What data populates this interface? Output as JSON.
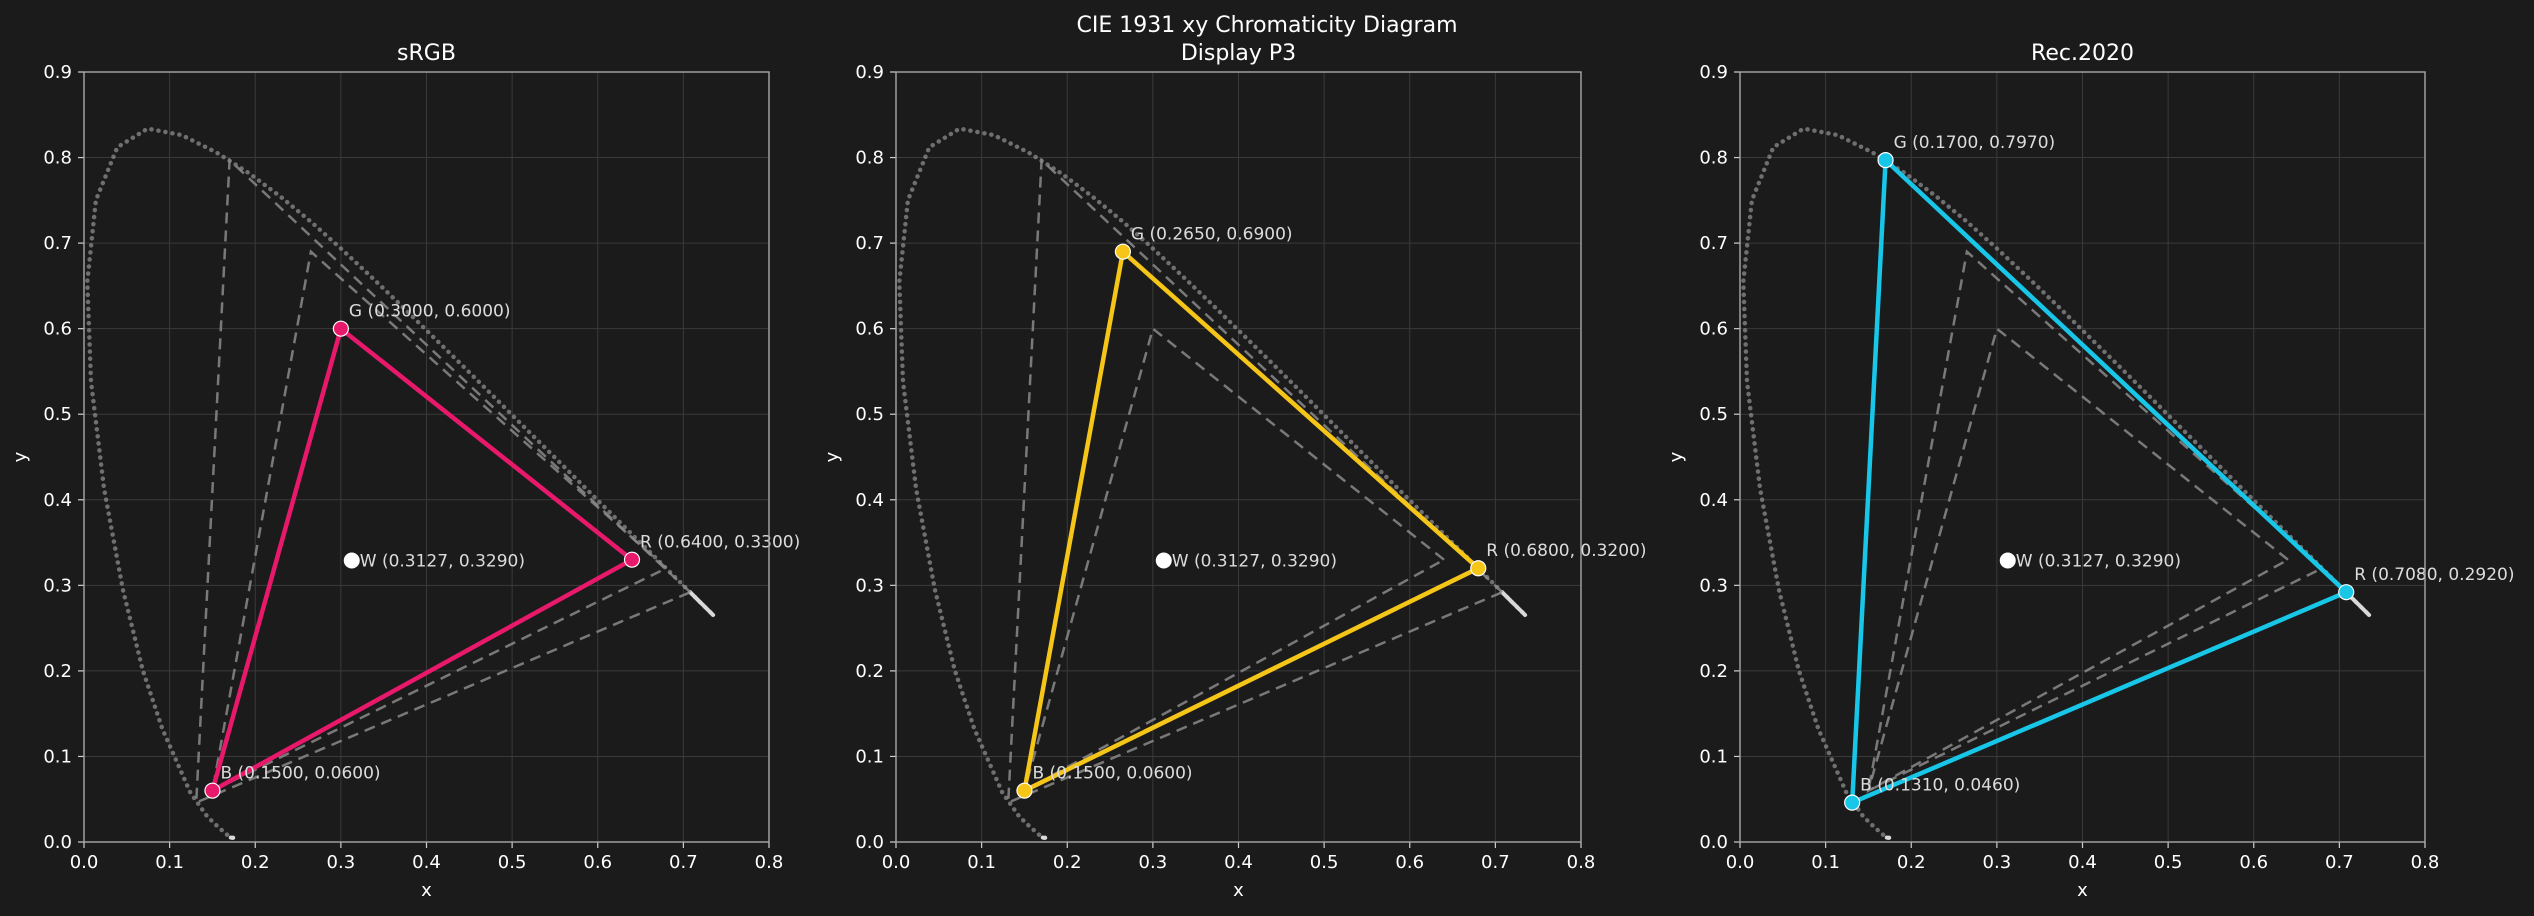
{
  "figure": {
    "suptitle_line1": "CIE 1931 xy Chromaticity Diagram",
    "background": "#1b1b1b",
    "grid_color": "#3a3a3a",
    "locus_color": "#8c8c8c",
    "reference_gamut_color": "#8a8a8a",
    "whitepoint_color": "#ffffff"
  },
  "chart_data": [
    {
      "type": "line",
      "title": "sRGB",
      "xlabel": "x",
      "ylabel": "y",
      "xlim": [
        0,
        0.8
      ],
      "ylim": [
        0,
        0.9
      ],
      "xticks": [
        "0.0",
        "0.1",
        "0.2",
        "0.3",
        "0.4",
        "0.5",
        "0.6",
        "0.7",
        "0.8"
      ],
      "yticks": [
        "0.0",
        "0.1",
        "0.2",
        "0.3",
        "0.4",
        "0.5",
        "0.6",
        "0.7",
        "0.8",
        "0.9"
      ],
      "grid": true,
      "color": "#e8196b",
      "primaries": [
        {
          "name": "R",
          "x": 0.64,
          "y": 0.33,
          "label": "R (0.6400, 0.3300)"
        },
        {
          "name": "G",
          "x": 0.3,
          "y": 0.6,
          "label": "G (0.3000, 0.6000)"
        },
        {
          "name": "B",
          "x": 0.15,
          "y": 0.06,
          "label": "B (0.1500, 0.0600)"
        }
      ],
      "whitepoint": {
        "x": 0.3127,
        "y": 0.329,
        "label": "W (0.3127, 0.3290)"
      }
    },
    {
      "type": "line",
      "title": "Display P3",
      "xlabel": "x",
      "ylabel": "y",
      "xlim": [
        0,
        0.8
      ],
      "ylim": [
        0,
        0.9
      ],
      "xticks": [
        "0.0",
        "0.1",
        "0.2",
        "0.3",
        "0.4",
        "0.5",
        "0.6",
        "0.7",
        "0.8"
      ],
      "yticks": [
        "0.0",
        "0.1",
        "0.2",
        "0.3",
        "0.4",
        "0.5",
        "0.6",
        "0.7",
        "0.8",
        "0.9"
      ],
      "grid": true,
      "color": "#f5c518",
      "primaries": [
        {
          "name": "R",
          "x": 0.68,
          "y": 0.32,
          "label": "R (0.6800, 0.3200)"
        },
        {
          "name": "G",
          "x": 0.265,
          "y": 0.69,
          "label": "G (0.2650, 0.6900)"
        },
        {
          "name": "B",
          "x": 0.15,
          "y": 0.06,
          "label": "B (0.1500, 0.0600)"
        }
      ],
      "whitepoint": {
        "x": 0.3127,
        "y": 0.329,
        "label": "W (0.3127, 0.3290)"
      }
    },
    {
      "type": "line",
      "title": "Rec.2020",
      "xlabel": "x",
      "ylabel": "y",
      "xlim": [
        0,
        0.8
      ],
      "ylim": [
        0,
        0.9
      ],
      "xticks": [
        "0.0",
        "0.1",
        "0.2",
        "0.3",
        "0.4",
        "0.5",
        "0.6",
        "0.7",
        "0.8"
      ],
      "yticks": [
        "0.0",
        "0.1",
        "0.2",
        "0.3",
        "0.4",
        "0.5",
        "0.6",
        "0.7",
        "0.8",
        "0.9"
      ],
      "grid": true,
      "color": "#18c6e8",
      "primaries": [
        {
          "name": "R",
          "x": 0.708,
          "y": 0.292,
          "label": "R (0.7080, 0.2920)"
        },
        {
          "name": "G",
          "x": 0.17,
          "y": 0.797,
          "label": "G (0.1700, 0.7970)"
        },
        {
          "name": "B",
          "x": 0.131,
          "y": 0.046,
          "label": "B (0.1310, 0.0460)"
        }
      ],
      "whitepoint": {
        "x": 0.3127,
        "y": 0.329,
        "label": "W (0.3127, 0.3290)"
      }
    }
  ],
  "reference_gamuts": [
    {
      "name": "sRGB",
      "points": [
        [
          0.64,
          0.33
        ],
        [
          0.3,
          0.6
        ],
        [
          0.15,
          0.06
        ]
      ]
    },
    {
      "name": "Display P3",
      "points": [
        [
          0.68,
          0.32
        ],
        [
          0.265,
          0.69
        ],
        [
          0.15,
          0.06
        ]
      ]
    },
    {
      "name": "Rec.2020",
      "points": [
        [
          0.708,
          0.292
        ],
        [
          0.17,
          0.797
        ],
        [
          0.131,
          0.046
        ]
      ]
    }
  ],
  "spectral_locus": [
    [
      0.1741,
      0.005
    ],
    [
      0.1738,
      0.0049
    ],
    [
      0.1733,
      0.0048
    ],
    [
      0.1726,
      0.0048
    ],
    [
      0.1714,
      0.0051
    ],
    [
      0.1689,
      0.0069
    ],
    [
      0.1644,
      0.0109
    ],
    [
      0.1566,
      0.0177
    ],
    [
      0.144,
      0.0297
    ],
    [
      0.1241,
      0.0578
    ],
    [
      0.0913,
      0.1327
    ],
    [
      0.0687,
      0.2007
    ],
    [
      0.0454,
      0.295
    ],
    [
      0.0235,
      0.4127
    ],
    [
      0.0082,
      0.5384
    ],
    [
      0.0039,
      0.6548
    ],
    [
      0.0139,
      0.7502
    ],
    [
      0.0389,
      0.812
    ],
    [
      0.0743,
      0.8338
    ],
    [
      0.1142,
      0.8262
    ],
    [
      0.1547,
      0.8059
    ],
    [
      0.1929,
      0.7816
    ],
    [
      0.2296,
      0.7543
    ],
    [
      0.2658,
      0.7243
    ],
    [
      0.3016,
      0.6923
    ],
    [
      0.3373,
      0.6589
    ],
    [
      0.3731,
      0.6245
    ],
    [
      0.4087,
      0.5896
    ],
    [
      0.4441,
      0.5547
    ],
    [
      0.4788,
      0.5202
    ],
    [
      0.5125,
      0.4866
    ],
    [
      0.5448,
      0.4544
    ],
    [
      0.5752,
      0.4242
    ],
    [
      0.6029,
      0.3965
    ],
    [
      0.627,
      0.3725
    ],
    [
      0.6482,
      0.3514
    ],
    [
      0.6658,
      0.334
    ],
    [
      0.6801,
      0.3197
    ],
    [
      0.6915,
      0.3083
    ],
    [
      0.7006,
      0.2993
    ],
    [
      0.7079,
      0.292
    ],
    [
      0.714,
      0.2859
    ],
    [
      0.719,
      0.2809
    ],
    [
      0.723,
      0.277
    ],
    [
      0.726,
      0.274
    ],
    [
      0.7283,
      0.2717
    ],
    [
      0.73,
      0.27
    ],
    [
      0.7311,
      0.2689
    ],
    [
      0.732,
      0.268
    ],
    [
      0.7327,
      0.2673
    ],
    [
      0.7334,
      0.2666
    ],
    [
      0.734,
      0.266
    ],
    [
      0.7344,
      0.2656
    ],
    [
      0.7346,
      0.2654
    ],
    [
      0.7347,
      0.2653
    ]
  ]
}
